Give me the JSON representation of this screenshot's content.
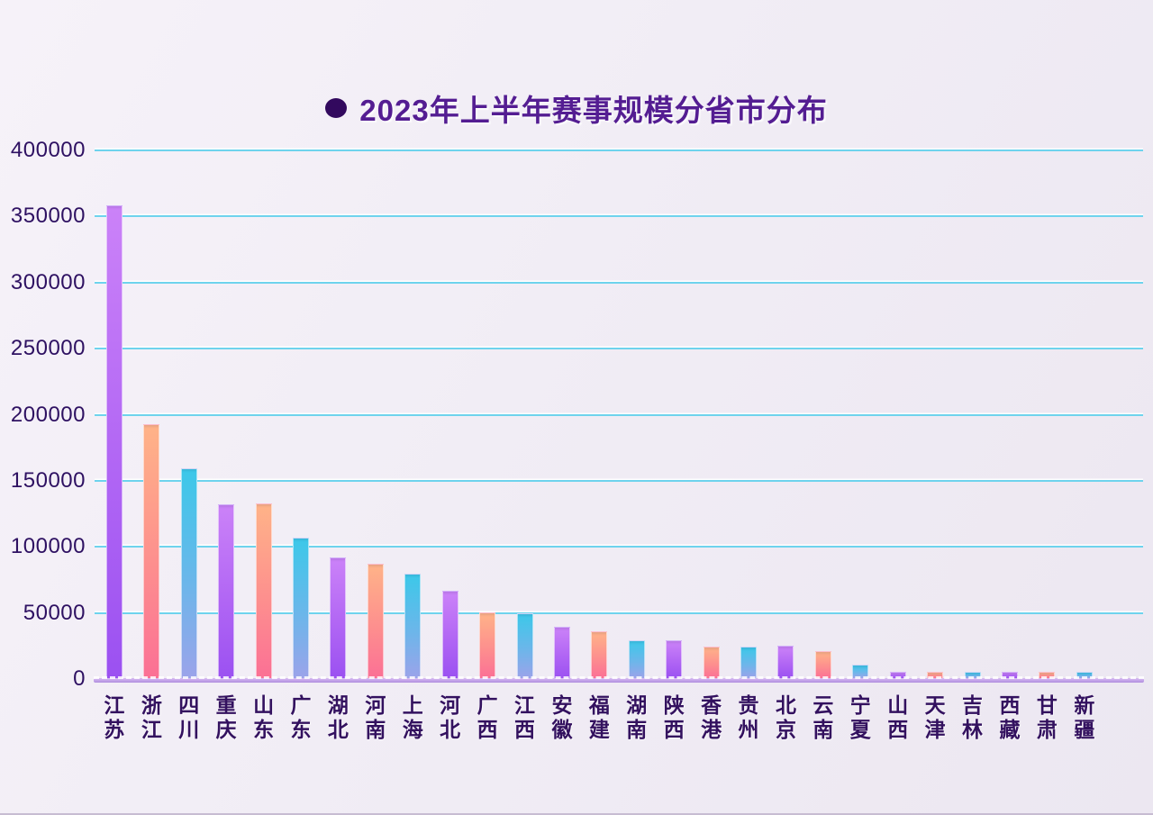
{
  "title": {
    "text": "2023年上半年赛事规模分省市分布"
  },
  "chart_data": {
    "type": "bar",
    "title": "2023年上半年赛事规模分省市分布",
    "categories": [
      "江苏",
      "浙江",
      "四川",
      "重庆",
      "山东",
      "广东",
      "湖北",
      "河南",
      "上海",
      "河北",
      "广西",
      "江西",
      "安徽",
      "福建",
      "湖南",
      "陕西",
      "香港",
      "贵州",
      "北京",
      "云南",
      "宁夏",
      "山西",
      "天津",
      "吉林",
      "西藏",
      "甘肃",
      "新疆"
    ],
    "values": [
      357500,
      192000,
      159000,
      131500,
      132000,
      106000,
      91000,
      86500,
      79000,
      66000,
      49700,
      49000,
      38800,
      35400,
      28400,
      28300,
      24100,
      23600,
      24300,
      20400,
      10200,
      5100,
      4900,
      4500,
      5100,
      4900,
      4800
    ],
    "xlabel": "",
    "ylabel": "",
    "ylim": [
      0,
      400000
    ],
    "ytick_interval": 50000,
    "ytick_labels": [
      "400000",
      "350000",
      "300000",
      "250000",
      "200000",
      "150000",
      "100000",
      "50000",
      "0"
    ],
    "grid": true,
    "legend_position": "none",
    "bar_color_cycle": [
      {
        "name": "purple",
        "top": "#cb82f8",
        "bottom": "#9b51f1"
      },
      {
        "name": "orange-pink",
        "top": "#ffb388",
        "bottom": "#fb7095"
      },
      {
        "name": "cyan-periwinkle",
        "top": "#3cc8e9",
        "bottom": "#9ba3ea"
      }
    ],
    "gridline_color": "#6ed3ed",
    "axis_line_color": "#c3a3e9",
    "text_color": "#2e1162",
    "title_color": "#541d92"
  }
}
